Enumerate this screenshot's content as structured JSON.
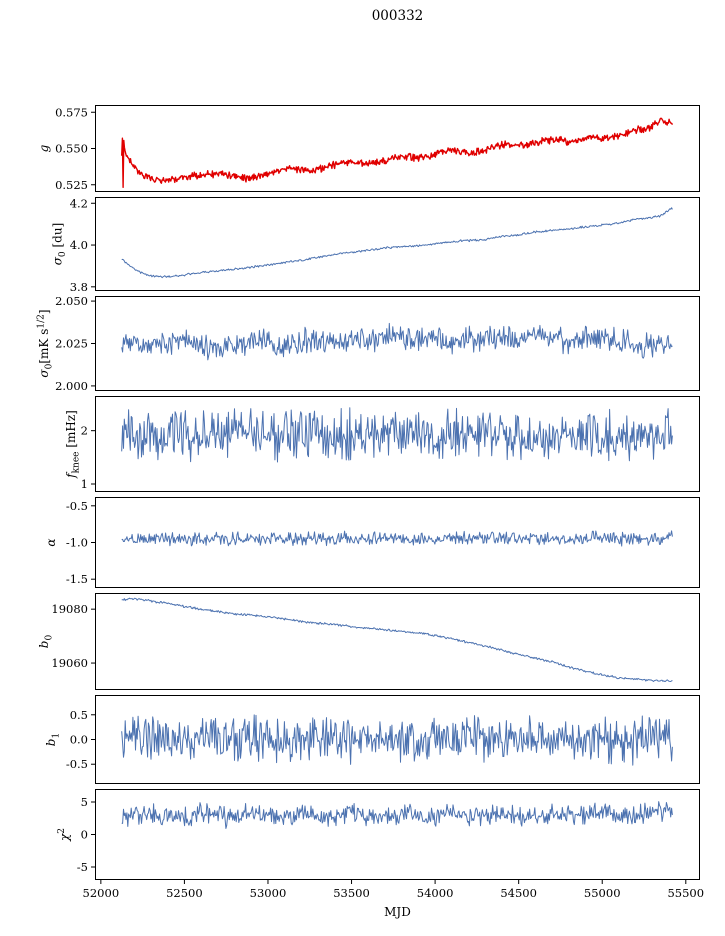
{
  "title": "000332",
  "xlabel": "MJD",
  "chart_data": {
    "type": "line",
    "x_unit": "MJD",
    "xlim": [
      51965,
      55585
    ],
    "data_xrange": [
      52125,
      55420
    ],
    "xticks": [
      "52000",
      "52500",
      "53000",
      "53500",
      "54000",
      "54500",
      "55000",
      "55500"
    ],
    "grid": false,
    "legend": false,
    "panels": [
      {
        "name": "g",
        "ylabel": [
          {
            "t": "g",
            "i": 1
          }
        ],
        "color": "#e00000",
        "ylim": [
          0.52,
          0.58
        ],
        "yticks": [
          "0.525",
          "0.550",
          "0.575"
        ],
        "noise": 0.0015,
        "line_width": 1.4,
        "points": [
          [
            52125,
            0.548
          ],
          [
            52129,
            0.5555
          ],
          [
            52133,
            0.5255
          ],
          [
            52137,
            0.554
          ],
          [
            52145,
            0.548
          ],
          [
            52160,
            0.5435
          ],
          [
            52200,
            0.537
          ],
          [
            52250,
            0.5315
          ],
          [
            52300,
            0.529
          ],
          [
            52350,
            0.528
          ],
          [
            52400,
            0.5285
          ],
          [
            52450,
            0.5295
          ],
          [
            52500,
            0.5305
          ],
          [
            52550,
            0.5315
          ],
          [
            52600,
            0.5315
          ],
          [
            52650,
            0.532
          ],
          [
            52700,
            0.5325
          ],
          [
            52750,
            0.532
          ],
          [
            52800,
            0.5305
          ],
          [
            52850,
            0.5295
          ],
          [
            52900,
            0.53
          ],
          [
            52950,
            0.531
          ],
          [
            53000,
            0.5325
          ],
          [
            53050,
            0.534
          ],
          [
            53100,
            0.5355
          ],
          [
            53150,
            0.536
          ],
          [
            53200,
            0.5355
          ],
          [
            53250,
            0.535
          ],
          [
            53300,
            0.5355
          ],
          [
            53350,
            0.537
          ],
          [
            53400,
            0.5385
          ],
          [
            53450,
            0.54
          ],
          [
            53500,
            0.5405
          ],
          [
            53550,
            0.54
          ],
          [
            53600,
            0.5395
          ],
          [
            53650,
            0.54
          ],
          [
            53700,
            0.5415
          ],
          [
            53750,
            0.5435
          ],
          [
            53800,
            0.5445
          ],
          [
            53850,
            0.5445
          ],
          [
            53900,
            0.5435
          ],
          [
            53950,
            0.5445
          ],
          [
            54000,
            0.546
          ],
          [
            54050,
            0.548
          ],
          [
            54100,
            0.5485
          ],
          [
            54150,
            0.548
          ],
          [
            54200,
            0.547
          ],
          [
            54250,
            0.5475
          ],
          [
            54300,
            0.549
          ],
          [
            54350,
            0.551
          ],
          [
            54400,
            0.5525
          ],
          [
            54450,
            0.5525
          ],
          [
            54500,
            0.5515
          ],
          [
            54550,
            0.5525
          ],
          [
            54600,
            0.554
          ],
          [
            54650,
            0.5555
          ],
          [
            54700,
            0.556
          ],
          [
            54750,
            0.5555
          ],
          [
            54800,
            0.5545
          ],
          [
            54850,
            0.5555
          ],
          [
            54900,
            0.557
          ],
          [
            54950,
            0.5575
          ],
          [
            55000,
            0.5565
          ],
          [
            55050,
            0.5575
          ],
          [
            55100,
            0.559
          ],
          [
            55150,
            0.5605
          ],
          [
            55200,
            0.5625
          ],
          [
            55250,
            0.5635
          ],
          [
            55300,
            0.5655
          ],
          [
            55330,
            0.5685
          ],
          [
            55360,
            0.57
          ],
          [
            55380,
            0.5655
          ],
          [
            55400,
            0.5695
          ],
          [
            55420,
            0.566
          ]
        ]
      },
      {
        "name": "sigma0_du",
        "ylabel": [
          {
            "t": "σ",
            "i": 1
          },
          {
            "t": "0",
            "sub": 1
          },
          {
            "t": " [du]"
          }
        ],
        "color": "#4c72b0",
        "ylim": [
          3.78,
          4.23
        ],
        "yticks": [
          "3.8",
          "4.0",
          "4.2"
        ],
        "noise": 0.003,
        "line_width": 1,
        "points": [
          [
            52125,
            3.935
          ],
          [
            52150,
            3.915
          ],
          [
            52200,
            3.885
          ],
          [
            52250,
            3.865
          ],
          [
            52300,
            3.853
          ],
          [
            52350,
            3.848
          ],
          [
            52400,
            3.848
          ],
          [
            52450,
            3.852
          ],
          [
            52500,
            3.858
          ],
          [
            52550,
            3.862
          ],
          [
            52600,
            3.868
          ],
          [
            52700,
            3.875
          ],
          [
            52800,
            3.885
          ],
          [
            52900,
            3.894
          ],
          [
            53000,
            3.905
          ],
          [
            53100,
            3.916
          ],
          [
            53200,
            3.928
          ],
          [
            53300,
            3.94
          ],
          [
            53400,
            3.956
          ],
          [
            53450,
            3.963
          ],
          [
            53500,
            3.965
          ],
          [
            53600,
            3.975
          ],
          [
            53700,
            3.986
          ],
          [
            53800,
            3.993
          ],
          [
            53900,
            3.996
          ],
          [
            54000,
            4.006
          ],
          [
            54100,
            4.014
          ],
          [
            54150,
            4.02
          ],
          [
            54200,
            4.022
          ],
          [
            54300,
            4.026
          ],
          [
            54400,
            4.041
          ],
          [
            54500,
            4.049
          ],
          [
            54600,
            4.062
          ],
          [
            54700,
            4.071
          ],
          [
            54800,
            4.076
          ],
          [
            54900,
            4.087
          ],
          [
            55000,
            4.095
          ],
          [
            55100,
            4.105
          ],
          [
            55200,
            4.124
          ],
          [
            55300,
            4.133
          ],
          [
            55350,
            4.14
          ],
          [
            55400,
            4.17
          ],
          [
            55420,
            4.175
          ]
        ]
      },
      {
        "name": "sigma0_rms",
        "ylabel": [
          {
            "t": "σ",
            "i": 1
          },
          {
            "t": "0",
            "sub": 1
          },
          {
            "t": "[mK s"
          },
          {
            "t": "1/2",
            "sup": 1
          },
          {
            "t": "]"
          }
        ],
        "color": "#4c72b0",
        "ylim": [
          1.997,
          2.053
        ],
        "yticks": [
          "2.000",
          "2.025",
          "2.050"
        ],
        "noise": 0.0045,
        "line_width": 1,
        "points": [
          [
            52125,
            2.028
          ],
          [
            52200,
            2.024
          ],
          [
            52300,
            2.025
          ],
          [
            52400,
            2.024
          ],
          [
            52500,
            2.026
          ],
          [
            52600,
            2.024
          ],
          [
            52700,
            2.023
          ],
          [
            52800,
            2.025
          ],
          [
            52900,
            2.026
          ],
          [
            53000,
            2.027
          ],
          [
            53050,
            2.02
          ],
          [
            53100,
            2.023
          ],
          [
            53200,
            2.026
          ],
          [
            53300,
            2.025
          ],
          [
            53400,
            2.027
          ],
          [
            53500,
            2.028
          ],
          [
            53600,
            2.027
          ],
          [
            53700,
            2.029
          ],
          [
            53800,
            2.03
          ],
          [
            53900,
            2.028
          ],
          [
            54000,
            2.027
          ],
          [
            54100,
            2.026
          ],
          [
            54200,
            2.028
          ],
          [
            54300,
            2.027
          ],
          [
            54400,
            2.029
          ],
          [
            54500,
            2.028
          ],
          [
            54600,
            2.031
          ],
          [
            54700,
            2.028
          ],
          [
            54800,
            2.026
          ],
          [
            54900,
            2.028
          ],
          [
            55000,
            2.029
          ],
          [
            55100,
            2.026
          ],
          [
            55200,
            2.024
          ],
          [
            55300,
            2.022
          ],
          [
            55350,
            2.025
          ],
          [
            55420,
            2.021
          ]
        ]
      },
      {
        "name": "f_knee",
        "ylabel": [
          {
            "t": "f",
            "i": 1
          },
          {
            "t": "knee",
            "sub": 1
          },
          {
            "t": " [mHz]"
          }
        ],
        "color": "#4c72b0",
        "ylim": [
          0.85,
          2.65
        ],
        "yticks": [
          "1",
          "2"
        ],
        "noise": 0.28,
        "line_width": 1,
        "points": [
          [
            52125,
            1.95
          ],
          [
            52500,
            1.9
          ],
          [
            53000,
            1.92
          ],
          [
            53500,
            1.93
          ],
          [
            54000,
            1.9
          ],
          [
            54500,
            1.92
          ],
          [
            55000,
            1.9
          ],
          [
            55420,
            1.88
          ]
        ]
      },
      {
        "name": "alpha",
        "ylabel": [
          {
            "t": "α",
            "i": 1
          }
        ],
        "color": "#4c72b0",
        "ylim": [
          -1.62,
          -0.38
        ],
        "yticks": [
          "-1.5",
          "-1.0",
          "-0.5"
        ],
        "noise": 0.055,
        "line_width": 1,
        "points": [
          [
            52125,
            -0.95
          ],
          [
            53000,
            -0.95
          ],
          [
            54000,
            -0.95
          ],
          [
            55000,
            -0.94
          ],
          [
            55420,
            -0.95
          ]
        ]
      },
      {
        "name": "b0",
        "ylabel": [
          {
            "t": "b",
            "i": 1
          },
          {
            "t": "0",
            "sub": 1
          }
        ],
        "color": "#4c72b0",
        "ylim": [
          19050,
          19086
        ],
        "yticks": [
          "19060",
          "19080"
        ],
        "noise": 0.25,
        "line_width": 1,
        "points": [
          [
            52125,
            19083.5
          ],
          [
            52200,
            19083.8
          ],
          [
            52300,
            19083.0
          ],
          [
            52400,
            19082.2
          ],
          [
            52500,
            19081.0
          ],
          [
            52600,
            19080.0
          ],
          [
            52700,
            19079.2
          ],
          [
            52800,
            19078.3
          ],
          [
            52900,
            19077.8
          ],
          [
            53000,
            19077.2
          ],
          [
            53100,
            19076.4
          ],
          [
            53200,
            19075.4
          ],
          [
            53300,
            19074.8
          ],
          [
            53400,
            19074.3
          ],
          [
            53500,
            19073.5
          ],
          [
            53600,
            19073.0
          ],
          [
            53700,
            19072.3
          ],
          [
            53800,
            19071.8
          ],
          [
            53900,
            19071.2
          ],
          [
            54000,
            19070.3
          ],
          [
            54100,
            19069.0
          ],
          [
            54200,
            19067.6
          ],
          [
            54300,
            19066.3
          ],
          [
            54400,
            19064.8
          ],
          [
            54500,
            19063.2
          ],
          [
            54600,
            19061.8
          ],
          [
            54700,
            19060.5
          ],
          [
            54800,
            19058.5
          ],
          [
            54900,
            19057.0
          ],
          [
            55000,
            19055.5
          ],
          [
            55100,
            19054.5
          ],
          [
            55200,
            19054.0
          ],
          [
            55300,
            19053.5
          ],
          [
            55420,
            19053.2
          ]
        ]
      },
      {
        "name": "b1",
        "ylabel": [
          {
            "t": "b",
            "i": 1
          },
          {
            "t": "1",
            "sub": 1
          }
        ],
        "color": "#4c72b0",
        "ylim": [
          -0.9,
          0.9
        ],
        "yticks": [
          "-0.5",
          "0.0",
          "0.5"
        ],
        "noise": 0.27,
        "line_width": 1,
        "points": [
          [
            52125,
            0.0
          ],
          [
            53000,
            0.0
          ],
          [
            54000,
            0.02
          ],
          [
            55000,
            0.0
          ],
          [
            55420,
            0.0
          ]
        ]
      },
      {
        "name": "chi2",
        "ylabel": [
          {
            "t": "χ",
            "i": 1
          },
          {
            "t": "2",
            "sup": 1
          }
        ],
        "color": "#4c72b0",
        "ylim": [
          -7,
          7
        ],
        "yticks": [
          "-5",
          "0",
          "5"
        ],
        "noise": 0.9,
        "line_width": 1,
        "points": [
          [
            52125,
            2.6
          ],
          [
            52300,
            3.2
          ],
          [
            52450,
            2.4
          ],
          [
            52600,
            3.4
          ],
          [
            52750,
            2.6
          ],
          [
            52900,
            3.3
          ],
          [
            53050,
            2.5
          ],
          [
            53200,
            3.3
          ],
          [
            53350,
            2.6
          ],
          [
            53500,
            3.4
          ],
          [
            53650,
            2.7
          ],
          [
            53800,
            3.2
          ],
          [
            53950,
            2.5
          ],
          [
            54100,
            3.3
          ],
          [
            54250,
            2.6
          ],
          [
            54400,
            3.4
          ],
          [
            54550,
            2.5
          ],
          [
            54700,
            3.3
          ],
          [
            54850,
            2.6
          ],
          [
            55000,
            3.5
          ],
          [
            55150,
            2.7
          ],
          [
            55300,
            3.6
          ],
          [
            55420,
            3.4
          ]
        ]
      }
    ]
  }
}
